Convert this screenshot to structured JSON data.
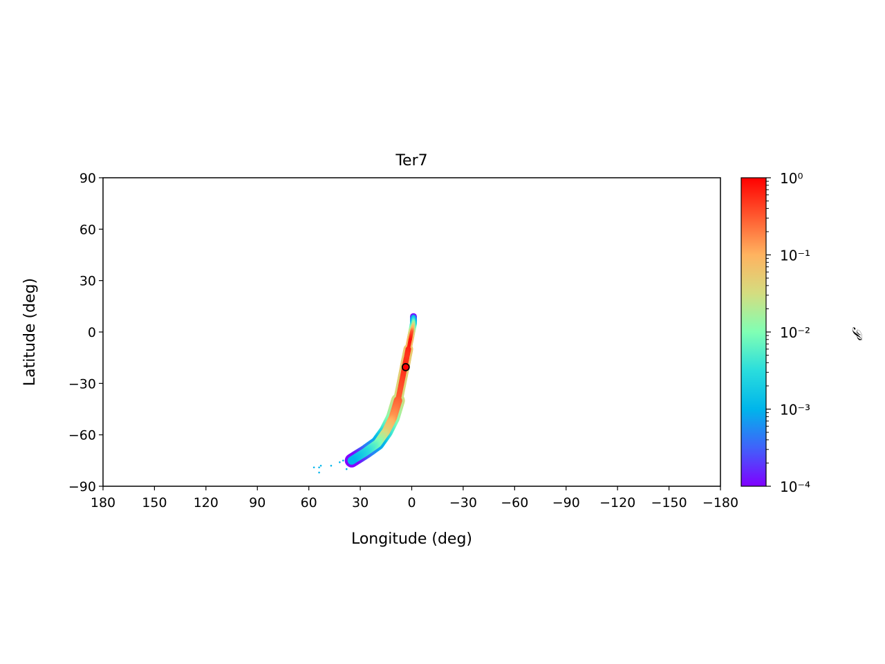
{
  "chart_data": {
    "type": "scatter",
    "title": "Ter7",
    "xlabel": "Longitude (deg)",
    "ylabel": "Latitude (deg)",
    "xlim": [
      180,
      -180
    ],
    "ylim": [
      -90,
      90
    ],
    "x_ticks": [
      180,
      150,
      120,
      90,
      60,
      30,
      0,
      -30,
      -60,
      -90,
      -120,
      -150,
      -180
    ],
    "x_tick_labels": [
      "180",
      "150",
      "120",
      "90",
      "60",
      "30",
      "0",
      "−30",
      "−60",
      "−90",
      "−120",
      "−150",
      "−180"
    ],
    "y_ticks": [
      90,
      60,
      30,
      0,
      -30,
      -60,
      -90
    ],
    "y_tick_labels": [
      "90",
      "60",
      "30",
      "0",
      "−30",
      "−60",
      "−90"
    ],
    "grid": false,
    "colorbar": {
      "label": "𝒫",
      "scale": "log",
      "range": [
        0.0001,
        1
      ],
      "tick_labels": [
        "10⁰",
        "10⁻¹",
        "10⁻²",
        "10⁻³",
        "10⁻⁴"
      ],
      "colormap": "rainbow",
      "colors": [
        "#8000ff",
        "#2c7ef7",
        "#00b5eb",
        "#2adddd",
        "#80ffb4",
        "#d4dd80",
        "#ffb360",
        "#ff592f",
        "#ff0000"
      ]
    },
    "stream": {
      "description_points": [
        {
          "lon": -1,
          "lat": 9,
          "p": 0.001
        },
        {
          "lon": -1,
          "lat": 5,
          "p": 0.02
        },
        {
          "lon": 0,
          "lat": 0,
          "p": 0.3
        },
        {
          "lon": 1,
          "lat": -5,
          "p": 0.8
        },
        {
          "lon": 3,
          "lat": -15,
          "p": 0.5
        },
        {
          "lon": 4,
          "lat": -20,
          "p": 0.6
        },
        {
          "lon": 6,
          "lat": -30,
          "p": 0.4
        },
        {
          "lon": 8,
          "lat": -40,
          "p": 0.3
        },
        {
          "lon": 11,
          "lat": -50,
          "p": 0.15
        },
        {
          "lon": 15,
          "lat": -58,
          "p": 0.05
        },
        {
          "lon": 20,
          "lat": -65,
          "p": 0.01
        },
        {
          "lon": 27,
          "lat": -70,
          "p": 0.003
        },
        {
          "lon": 35,
          "lat": -75,
          "p": 0.001
        }
      ],
      "outliers": [
        {
          "lon": 57,
          "lat": -79
        },
        {
          "lon": 54,
          "lat": -79
        },
        {
          "lon": 53,
          "lat": -78
        },
        {
          "lon": 54,
          "lat": -82
        },
        {
          "lon": 47,
          "lat": -78
        },
        {
          "lon": 38,
          "lat": -80
        },
        {
          "lon": 42,
          "lat": -76
        },
        {
          "lon": 40,
          "lat": -75
        }
      ]
    },
    "marker": {
      "lon": 3.5,
      "lat": -20.5,
      "color": "#ff0000",
      "edge": "#000000"
    }
  }
}
